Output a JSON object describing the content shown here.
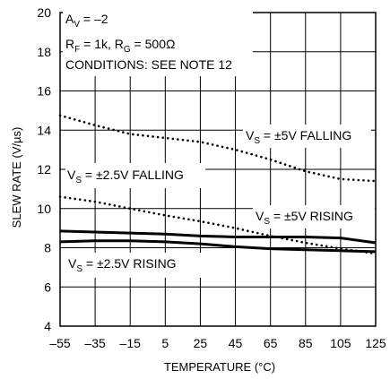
{
  "chart_data": {
    "type": "line",
    "xlabel": "TEMPERATURE (°C)",
    "ylabel": "SLEW RATE (V/µs)",
    "xlim": [
      -55,
      125
    ],
    "ylim": [
      4,
      20
    ],
    "x_ticks": [
      "–55",
      "–35",
      "–15",
      "5",
      "25",
      "45",
      "65",
      "85",
      "105",
      "125"
    ],
    "y_ticks": [
      "4",
      "6",
      "8",
      "10",
      "12",
      "14",
      "16",
      "18",
      "20"
    ],
    "grid": true,
    "conditions": {
      "av_main": "A",
      "av_sub": "V",
      "av_val": " = –2",
      "rf_main": "R",
      "rf_sub": "F",
      "rf_val": " = 1k, ",
      "rg_main": "R",
      "rg_sub": "G",
      "rg_val": " = 500Ω",
      "note": "CONDITIONS: SEE NOTE 12"
    },
    "series": [
      {
        "vs": "V",
        "vs_sub": "S",
        "label_rest": " = ±5V FALLING",
        "style": "dotted",
        "x": [
          -55,
          -35,
          -15,
          5,
          25,
          45,
          65,
          85,
          105,
          125
        ],
        "y": [
          14.75,
          14.25,
          13.8,
          13.6,
          13.4,
          13.0,
          12.5,
          11.9,
          11.5,
          11.4
        ]
      },
      {
        "vs": "V",
        "vs_sub": "S",
        "label_rest": " = ±2.5V FALLING",
        "style": "dotted",
        "x": [
          -55,
          -35,
          -15,
          5,
          25,
          45,
          65,
          85,
          105,
          125
        ],
        "y": [
          10.6,
          10.35,
          10.0,
          9.65,
          9.35,
          9.0,
          8.6,
          8.25,
          7.95,
          7.7
        ]
      },
      {
        "vs": "V",
        "vs_sub": "S",
        "label_rest": " = ±5V RISING",
        "style": "solid",
        "x": [
          -55,
          -35,
          -15,
          5,
          25,
          45,
          65,
          85,
          105,
          125
        ],
        "y": [
          8.85,
          8.8,
          8.75,
          8.7,
          8.6,
          8.55,
          8.55,
          8.55,
          8.5,
          8.25
        ]
      },
      {
        "vs": "V",
        "vs_sub": "S",
        "label_rest": " = ±2.5V RISING",
        "style": "solid",
        "x": [
          -55,
          -35,
          -15,
          5,
          25,
          45,
          65,
          85,
          105,
          125
        ],
        "y": [
          8.3,
          8.35,
          8.35,
          8.3,
          8.2,
          8.05,
          7.95,
          7.9,
          7.85,
          7.8
        ]
      }
    ]
  }
}
